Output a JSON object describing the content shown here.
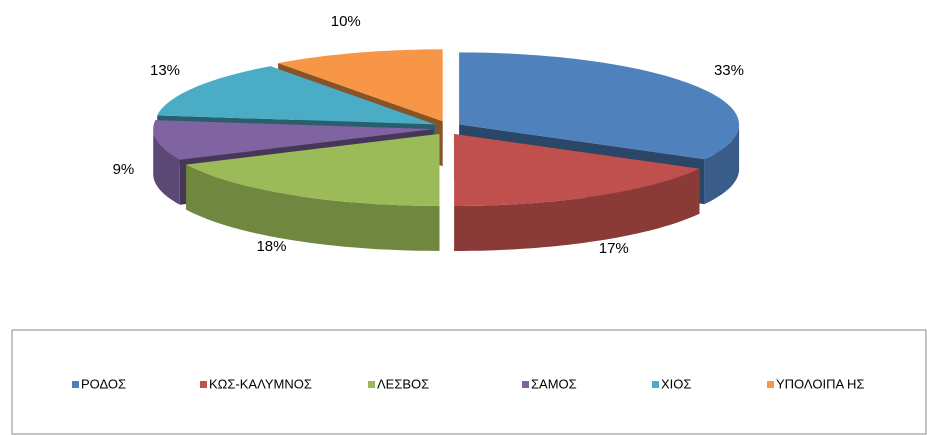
{
  "chart_data": {
    "type": "pie3d",
    "categories": [
      "ΡΟΔΟΣ",
      "ΚΩΣ-ΚΑΛΥΜΝΟΣ",
      "ΛΕΣΒΟΣ",
      "ΣΑΜΟΣ",
      "ΧΙΟΣ",
      "ΥΠΟΛΟΙΠΑ ΗΣ"
    ],
    "values": [
      33,
      17,
      18,
      9,
      13,
      10
    ],
    "value_labels": [
      "33%",
      "17%",
      "18%",
      "9%",
      "13%",
      "10%"
    ],
    "colors": [
      "#4f81bd",
      "#c0504d",
      "#9bbb59",
      "#8064a2",
      "#4bacc6",
      "#f79646"
    ],
    "legend": "bottom"
  }
}
